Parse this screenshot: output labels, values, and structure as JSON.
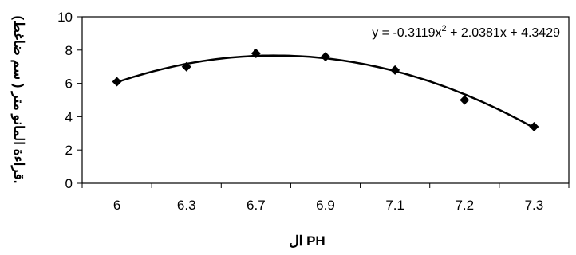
{
  "chart_data": {
    "type": "scatter",
    "title": "",
    "xlabel": "ال PH",
    "ylabel": "قراءة المانو متر ( سم ضاغط).",
    "x_tick_labels": [
      "6",
      "6.3",
      "6.7",
      "6.9",
      "7.1",
      "7.2",
      "7.3"
    ],
    "y_ticks": [
      0,
      2,
      4,
      6,
      8,
      10
    ],
    "ylim": [
      0,
      10
    ],
    "grid": false,
    "series": [
      {
        "marker": "diamond",
        "color": "#000000",
        "points": [
          {
            "x": "6",
            "y": 6.1
          },
          {
            "x": "6.3",
            "y": 7.0
          },
          {
            "x": "6.7",
            "y": 7.8
          },
          {
            "x": "6.9",
            "y": 7.6
          },
          {
            "x": "7.1",
            "y": 6.8
          },
          {
            "x": "7.2",
            "y": 5.0
          },
          {
            "x": "7.3",
            "y": 3.4
          }
        ]
      }
    ],
    "trendline": {
      "type": "polynomial",
      "order": 2,
      "coefficients": [
        -0.3119,
        2.0381,
        4.3429
      ],
      "equation_prefix": "y = -0.3119x",
      "equation_exponent": "2",
      "equation_suffix": " + 2.0381x + 4.3429",
      "position": "top-right"
    }
  }
}
